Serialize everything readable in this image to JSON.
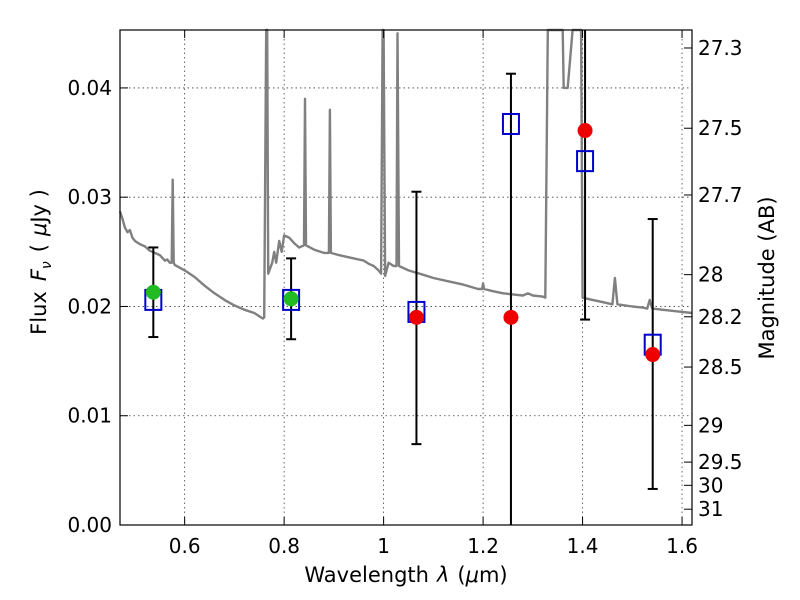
{
  "chart_data": {
    "type": "scatter",
    "xlabel": "Wavelength",
    "xlabel_sym": "λ",
    "xlabel_unit_open": "(",
    "xlabel_unit_mu": "μ",
    "xlabel_unit_rest": "m)",
    "ylabel": "Flux",
    "ylabel_sym": "F",
    "ylabel_sub": "ν",
    "ylabel_unit_open": "(",
    "ylabel_unit_mu": "μ",
    "ylabel_unit_rest": "Jy )",
    "y2label": "Magnitude (AB)",
    "xlim": [
      0.47,
      1.62
    ],
    "ylim": [
      0.0,
      0.0453
    ],
    "grid": true,
    "xticks": [
      {
        "v": 0.6,
        "label": "0.6"
      },
      {
        "v": 0.8,
        "label": "0.8"
      },
      {
        "v": 1.0,
        "label": "1"
      },
      {
        "v": 1.2,
        "label": "1.2"
      },
      {
        "v": 1.4,
        "label": "1.4"
      },
      {
        "v": 1.6,
        "label": "1.6"
      }
    ],
    "yticks": [
      {
        "v": 0.0,
        "label": "0.00"
      },
      {
        "v": 0.01,
        "label": "0.01"
      },
      {
        "v": 0.02,
        "label": "0.02"
      },
      {
        "v": 0.03,
        "label": "0.03"
      },
      {
        "v": 0.04,
        "label": "0.04"
      }
    ],
    "mag_ticks": [
      {
        "v": 27.3,
        "label": "27.3"
      },
      {
        "v": 27.5,
        "label": "27.5"
      },
      {
        "v": 27.7,
        "label": "27.7"
      },
      {
        "v": 28.0,
        "label": "28"
      },
      {
        "v": 28.2,
        "label": "28.2"
      },
      {
        "v": 28.5,
        "label": "28.5"
      },
      {
        "v": 29.0,
        "label": "29"
      },
      {
        "v": 29.5,
        "label": "29.5"
      },
      {
        "v": 30.0,
        "label": "30"
      },
      {
        "v": 31.0,
        "label": "31"
      }
    ],
    "template_spectrum": {
      "color": "#808080",
      "points": [
        [
          0.47,
          0.0287
        ],
        [
          0.475,
          0.028
        ],
        [
          0.48,
          0.0272
        ],
        [
          0.485,
          0.0268
        ],
        [
          0.49,
          0.027
        ],
        [
          0.495,
          0.0263
        ],
        [
          0.5,
          0.026
        ],
        [
          0.51,
          0.0257
        ],
        [
          0.52,
          0.0255
        ],
        [
          0.53,
          0.0251
        ],
        [
          0.54,
          0.0249
        ],
        [
          0.55,
          0.0247
        ],
        [
          0.56,
          0.0242
        ],
        [
          0.565,
          0.0243
        ],
        [
          0.57,
          0.024
        ],
        [
          0.574,
          0.024
        ],
        [
          0.576,
          0.0316
        ],
        [
          0.578,
          0.024
        ],
        [
          0.58,
          0.0238
        ],
        [
          0.6,
          0.0233
        ],
        [
          0.62,
          0.0227
        ],
        [
          0.64,
          0.0219
        ],
        [
          0.66,
          0.0212
        ],
        [
          0.68,
          0.0206
        ],
        [
          0.7,
          0.0201
        ],
        [
          0.72,
          0.0197
        ],
        [
          0.74,
          0.0194
        ],
        [
          0.75,
          0.0191
        ],
        [
          0.757,
          0.0189
        ],
        [
          0.76,
          0.019
        ],
        [
          0.764,
          0.0453
        ],
        [
          0.766,
          0.0453
        ],
        [
          0.768,
          0.023
        ],
        [
          0.772,
          0.0235
        ],
        [
          0.776,
          0.024
        ],
        [
          0.78,
          0.025
        ],
        [
          0.784,
          0.024
        ],
        [
          0.79,
          0.026
        ],
        [
          0.795,
          0.025
        ],
        [
          0.8,
          0.0265
        ],
        [
          0.81,
          0.0263
        ],
        [
          0.82,
          0.0258
        ],
        [
          0.83,
          0.0254
        ],
        [
          0.84,
          0.0256
        ],
        [
          0.842,
          0.039
        ],
        [
          0.844,
          0.0256
        ],
        [
          0.86,
          0.0252
        ],
        [
          0.88,
          0.0249
        ],
        [
          0.89,
          0.0249
        ],
        [
          0.892,
          0.038
        ],
        [
          0.894,
          0.0249
        ],
        [
          0.91,
          0.0247
        ],
        [
          0.93,
          0.0245
        ],
        [
          0.95,
          0.0243
        ],
        [
          0.96,
          0.0242
        ],
        [
          0.97,
          0.0239
        ],
        [
          0.98,
          0.0237
        ],
        [
          0.99,
          0.0233
        ],
        [
          0.995,
          0.023
        ],
        [
          0.998,
          0.0453
        ],
        [
          1.0,
          0.0453
        ],
        [
          1.003,
          0.0228
        ],
        [
          1.01,
          0.024
        ],
        [
          1.02,
          0.0237
        ],
        [
          1.026,
          0.0237
        ],
        [
          1.028,
          0.045
        ],
        [
          1.031,
          0.0237
        ],
        [
          1.05,
          0.0233
        ],
        [
          1.08,
          0.0229
        ],
        [
          1.1,
          0.0226
        ],
        [
          1.13,
          0.0223
        ],
        [
          1.16,
          0.022
        ],
        [
          1.19,
          0.0216
        ],
        [
          1.198,
          0.0216
        ],
        [
          1.2,
          0.0221
        ],
        [
          1.202,
          0.0216
        ],
        [
          1.22,
          0.0214
        ],
        [
          1.24,
          0.0212
        ],
        [
          1.26,
          0.0211
        ],
        [
          1.28,
          0.021
        ],
        [
          1.29,
          0.0212
        ],
        [
          1.3,
          0.021
        ],
        [
          1.32,
          0.0209
        ],
        [
          1.325,
          0.0208
        ],
        [
          1.33,
          0.0453
        ],
        [
          1.35,
          0.0453
        ],
        [
          1.36,
          0.0453
        ],
        [
          1.362,
          0.04
        ],
        [
          1.37,
          0.04
        ],
        [
          1.38,
          0.0453
        ],
        [
          1.397,
          0.0453
        ],
        [
          1.4,
          0.0208
        ],
        [
          1.42,
          0.0206
        ],
        [
          1.44,
          0.0204
        ],
        [
          1.46,
          0.0202
        ],
        [
          1.465,
          0.0226
        ],
        [
          1.47,
          0.0202
        ],
        [
          1.5,
          0.02
        ],
        [
          1.52,
          0.0199
        ],
        [
          1.53,
          0.0198
        ],
        [
          1.535,
          0.0206
        ],
        [
          1.54,
          0.0198
        ],
        [
          1.56,
          0.0197
        ],
        [
          1.58,
          0.0196
        ],
        [
          1.6,
          0.0195
        ],
        [
          1.62,
          0.0194
        ]
      ]
    },
    "model_points": {
      "color": "#0000cc",
      "marker": "open-square",
      "x": [
        0.537,
        0.814,
        1.066,
        1.256,
        1.405,
        1.541
      ],
      "y": [
        0.0206,
        0.0206,
        0.0195,
        0.0367,
        0.0333,
        0.0165
      ]
    },
    "detections": {
      "color": "#22bb22",
      "marker": "filled-circle",
      "x": [
        0.537,
        0.814
      ],
      "y": [
        0.0213,
        0.0207
      ],
      "yerr_low": [
        0.0172,
        0.017
      ],
      "yerr_high": [
        0.0254,
        0.0244
      ]
    },
    "upper_limits": {
      "color": "#ee0000",
      "marker": "filled-circle",
      "x": [
        1.066,
        1.256,
        1.405,
        1.541
      ],
      "y": [
        0.019,
        0.019,
        0.0361,
        0.0156
      ],
      "yerr_low": [
        0.0074,
        0.0,
        0.0188,
        0.0033
      ],
      "yerr_high": [
        0.0305,
        0.0413,
        0.0453,
        0.028
      ]
    }
  }
}
